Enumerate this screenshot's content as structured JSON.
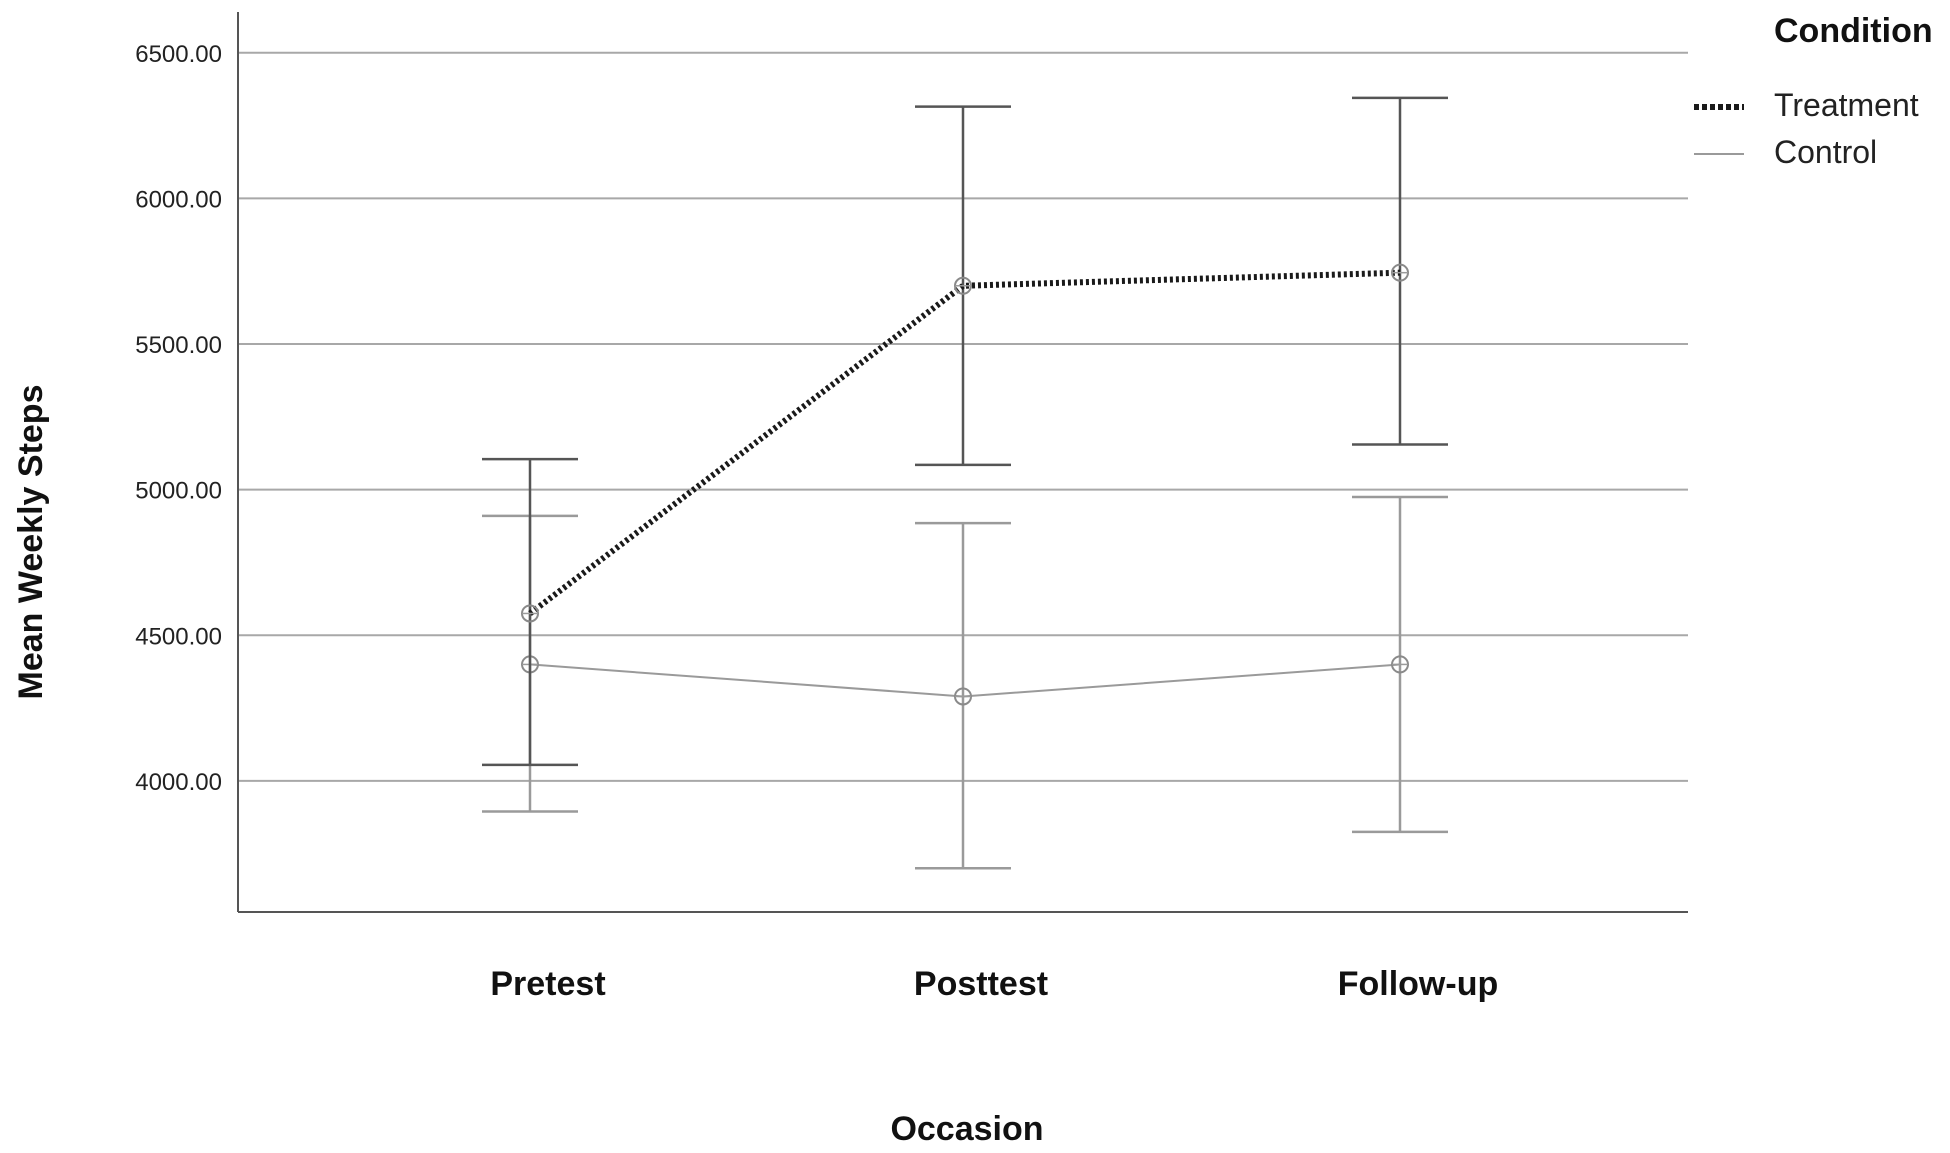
{
  "chart_data": {
    "type": "line",
    "xlabel": "Occasion",
    "ylabel": "Mean Weekly Steps",
    "categories": [
      "Pretest",
      "Posttest",
      "Follow-up"
    ],
    "ylim": [
      3550,
      6640
    ],
    "yticks": [
      4000,
      4500,
      5000,
      5500,
      6000,
      6500
    ],
    "ytick_labels": [
      "4000.00",
      "4500.00",
      "5000.00",
      "5500.00",
      "6000.00",
      "6500.00"
    ],
    "grid": "horizontal",
    "legend": {
      "title": "Condition",
      "position": "top-right"
    },
    "series": [
      {
        "name": "Treatment",
        "line_style": "dotted-bold",
        "color": "#1a1a1a",
        "values": [
          4575,
          5700,
          5745
        ],
        "ci_lower": [
          4055,
          5085,
          5155
        ],
        "ci_upper": [
          5105,
          6315,
          6345
        ]
      },
      {
        "name": "Control",
        "line_style": "solid-thin",
        "color": "#9a9a9a",
        "values": [
          4400,
          4290,
          4400
        ],
        "ci_lower": [
          3895,
          3700,
          3825
        ],
        "ci_upper": [
          4910,
          4885,
          4975
        ]
      }
    ]
  }
}
